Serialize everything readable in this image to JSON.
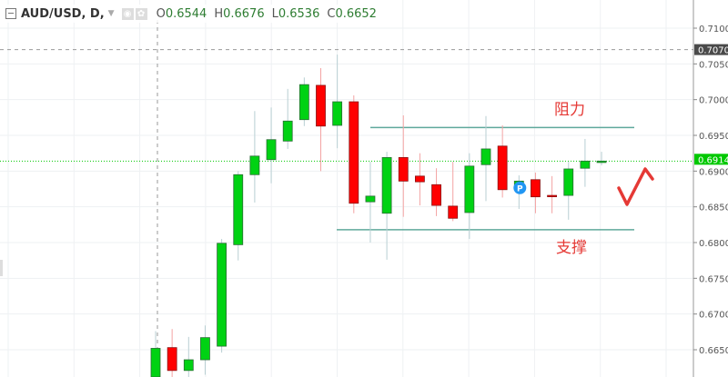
{
  "header": {
    "symbol": "AUD/USD, D,",
    "icons": [
      "eye-icon",
      "gear-icon"
    ],
    "ohlc": [
      {
        "key": "O",
        "value": "0.6544"
      },
      {
        "key": "H",
        "value": "0.6676"
      },
      {
        "key": "L",
        "value": "0.6536"
      },
      {
        "key": "C",
        "value": "0.6652"
      }
    ]
  },
  "annotations": {
    "resistance_label": "阻力",
    "support_label": "支撑"
  },
  "colors": {
    "up": "#00d213",
    "down": "#ff0000",
    "level_line": "#5fa99b",
    "last_price": "#00c800",
    "crosshair_price_bg": "#4a4a4a",
    "annotation": "#e53935",
    "marker": "#2196f3"
  },
  "chart_data": {
    "type": "candlestick",
    "symbol": "AUD/USD",
    "timeframe": "D",
    "ylim": [
      0.662,
      0.7125
    ],
    "y_ticks": [
      "0.7100",
      "0.7050",
      "0.7000",
      "0.6950",
      "0.6900",
      "0.6850",
      "0.6800",
      "0.6750",
      "0.6700",
      "0.6650"
    ],
    "grid": true,
    "last_price": "0.6914",
    "crosshair_price": "0.7070",
    "crosshair_candle": 0,
    "resistance": 0.6961,
    "support": 0.6818,
    "marker_label": "P",
    "marker_candle": 22,
    "candles": [
      {
        "o": 0.6544,
        "h": 0.6676,
        "l": 0.6536,
        "c": 0.6652
      },
      {
        "o": 0.6653,
        "h": 0.6679,
        "l": 0.661,
        "c": 0.6621
      },
      {
        "o": 0.6621,
        "h": 0.6668,
        "l": 0.6605,
        "c": 0.6636
      },
      {
        "o": 0.6636,
        "h": 0.6684,
        "l": 0.6615,
        "c": 0.6667
      },
      {
        "o": 0.6655,
        "h": 0.6805,
        "l": 0.6646,
        "c": 0.6799
      },
      {
        "o": 0.6797,
        "h": 0.69,
        "l": 0.6775,
        "c": 0.6895
      },
      {
        "o": 0.6895,
        "h": 0.6984,
        "l": 0.6856,
        "c": 0.6921
      },
      {
        "o": 0.6916,
        "h": 0.6989,
        "l": 0.6883,
        "c": 0.6944
      },
      {
        "o": 0.6942,
        "h": 0.7015,
        "l": 0.6931,
        "c": 0.697
      },
      {
        "o": 0.6972,
        "h": 0.7031,
        "l": 0.6963,
        "c": 0.7021
      },
      {
        "o": 0.702,
        "h": 0.7044,
        "l": 0.69,
        "c": 0.6963
      },
      {
        "o": 0.6964,
        "h": 0.7063,
        "l": 0.6932,
        "c": 0.6997
      },
      {
        "o": 0.6997,
        "h": 0.7006,
        "l": 0.6841,
        "c": 0.6855
      },
      {
        "o": 0.6857,
        "h": 0.6913,
        "l": 0.68,
        "c": 0.6865
      },
      {
        "o": 0.6841,
        "h": 0.6927,
        "l": 0.6776,
        "c": 0.6919
      },
      {
        "o": 0.6919,
        "h": 0.6978,
        "l": 0.6836,
        "c": 0.6886
      },
      {
        "o": 0.6893,
        "h": 0.6925,
        "l": 0.6852,
        "c": 0.6885
      },
      {
        "o": 0.6881,
        "h": 0.6904,
        "l": 0.6837,
        "c": 0.6852
      },
      {
        "o": 0.6851,
        "h": 0.6913,
        "l": 0.683,
        "c": 0.6834
      },
      {
        "o": 0.6842,
        "h": 0.6925,
        "l": 0.6805,
        "c": 0.6907
      },
      {
        "o": 0.6909,
        "h": 0.6977,
        "l": 0.6858,
        "c": 0.6931
      },
      {
        "o": 0.6935,
        "h": 0.6964,
        "l": 0.6863,
        "c": 0.6874
      },
      {
        "o": 0.6874,
        "h": 0.6894,
        "l": 0.6847,
        "c": 0.6886
      },
      {
        "o": 0.6888,
        "h": 0.6898,
        "l": 0.6841,
        "c": 0.6864
      },
      {
        "o": 0.6866,
        "h": 0.6893,
        "l": 0.6841,
        "c": 0.6865
      },
      {
        "o": 0.6866,
        "h": 0.6913,
        "l": 0.6832,
        "c": 0.6903
      },
      {
        "o": 0.6904,
        "h": 0.6945,
        "l": 0.6878,
        "c": 0.6914
      },
      {
        "o": 0.6912,
        "h": 0.6927,
        "l": 0.6908,
        "c": 0.6914
      }
    ]
  }
}
